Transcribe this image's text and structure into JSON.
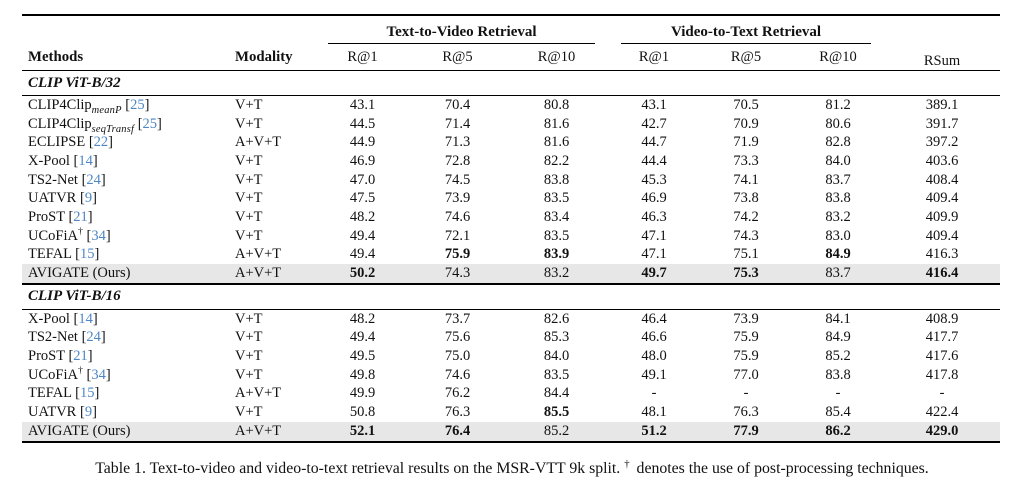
{
  "header": {
    "methods": "Methods",
    "modality": "Modality",
    "t2v_group": "Text-to-Video Retrieval",
    "v2t_group": "Video-to-Text Retrieval",
    "rsum": "RSum",
    "metric_labels": [
      "R@1",
      "R@5",
      "R@10",
      "R@1",
      "R@5",
      "R@10"
    ]
  },
  "colors": {
    "cite_blue": "#4f87c5",
    "highlight_gray": "#e7e7e7"
  },
  "chart_data": {
    "type": "table",
    "title": "Table 1",
    "column_groups": [
      "Text-to-Video Retrieval",
      "Video-to-Text Retrieval"
    ],
    "columns": [
      "Methods",
      "Modality",
      "T2V R@1",
      "T2V R@5",
      "T2V R@10",
      "V2T R@1",
      "V2T R@5",
      "V2T R@10",
      "RSum"
    ]
  },
  "sections": [
    {
      "title": "CLIP ViT-B/32",
      "rows": [
        {
          "method": "CLIP4Clip",
          "sub": "meanP",
          "ref": "25",
          "modality": "V+T",
          "values": [
            "43.1",
            "70.4",
            "80.8",
            "43.1",
            "70.5",
            "81.2",
            "389.1"
          ],
          "bold": []
        },
        {
          "method": "CLIP4Clip",
          "sub": "seqTransf",
          "ref": "25",
          "modality": "V+T",
          "values": [
            "44.5",
            "71.4",
            "81.6",
            "42.7",
            "70.9",
            "80.6",
            "391.7"
          ],
          "bold": []
        },
        {
          "method": "ECLIPSE",
          "ref": "22",
          "modality": "A+V+T",
          "values": [
            "44.9",
            "71.3",
            "81.6",
            "44.7",
            "71.9",
            "82.8",
            "397.2"
          ],
          "bold": []
        },
        {
          "method": "X-Pool",
          "ref": "14",
          "modality": "V+T",
          "values": [
            "46.9",
            "72.8",
            "82.2",
            "44.4",
            "73.3",
            "84.0",
            "403.6"
          ],
          "bold": []
        },
        {
          "method": "TS2-Net",
          "ref": "24",
          "modality": "V+T",
          "values": [
            "47.0",
            "74.5",
            "83.8",
            "45.3",
            "74.1",
            "83.7",
            "408.4"
          ],
          "bold": []
        },
        {
          "method": "UATVR",
          "ref": "9",
          "modality": "V+T",
          "values": [
            "47.5",
            "73.9",
            "83.5",
            "46.9",
            "73.8",
            "83.8",
            "409.4"
          ],
          "bold": []
        },
        {
          "method": "ProST",
          "ref": "21",
          "modality": "V+T",
          "values": [
            "48.2",
            "74.6",
            "83.4",
            "46.3",
            "74.2",
            "83.2",
            "409.9"
          ],
          "bold": []
        },
        {
          "method": "UCoFiA",
          "dagger": true,
          "ref": "34",
          "modality": "V+T",
          "values": [
            "49.4",
            "72.1",
            "83.5",
            "47.1",
            "74.3",
            "83.0",
            "409.4"
          ],
          "bold": []
        },
        {
          "method": "TEFAL",
          "ref": "15",
          "modality": "A+V+T",
          "values": [
            "49.4",
            "75.9",
            "83.9",
            "47.1",
            "75.1",
            "84.9",
            "416.3"
          ],
          "bold": [
            1,
            2,
            5
          ]
        },
        {
          "method": "AVIGATE",
          "suffix": "(Ours)",
          "modality": "A+V+T",
          "values": [
            "50.2",
            "74.3",
            "83.2",
            "49.7",
            "75.3",
            "83.7",
            "416.4"
          ],
          "bold": [
            0,
            3,
            4,
            6
          ],
          "highlight": true
        }
      ]
    },
    {
      "title": "CLIP ViT-B/16",
      "rows": [
        {
          "method": "X-Pool",
          "ref": "14",
          "modality": "V+T",
          "values": [
            "48.2",
            "73.7",
            "82.6",
            "46.4",
            "73.9",
            "84.1",
            "408.9"
          ],
          "bold": []
        },
        {
          "method": "TS2-Net",
          "ref": "24",
          "modality": "V+T",
          "values": [
            "49.4",
            "75.6",
            "85.3",
            "46.6",
            "75.9",
            "84.9",
            "417.7"
          ],
          "bold": []
        },
        {
          "method": "ProST",
          "ref": "21",
          "modality": "V+T",
          "values": [
            "49.5",
            "75.0",
            "84.0",
            "48.0",
            "75.9",
            "85.2",
            "417.6"
          ],
          "bold": []
        },
        {
          "method": "UCoFiA",
          "dagger": true,
          "ref": "34",
          "modality": "V+T",
          "values": [
            "49.8",
            "74.6",
            "83.5",
            "49.1",
            "77.0",
            "83.8",
            "417.8"
          ],
          "bold": []
        },
        {
          "method": "TEFAL",
          "ref": "15",
          "modality": "A+V+T",
          "values": [
            "49.9",
            "76.2",
            "84.4",
            "-",
            "-",
            "-",
            "-"
          ],
          "bold": []
        },
        {
          "method": "UATVR",
          "ref": "9",
          "modality": "V+T",
          "values": [
            "50.8",
            "76.3",
            "85.5",
            "48.1",
            "76.3",
            "85.4",
            "422.4"
          ],
          "bold": [
            2
          ]
        },
        {
          "method": "AVIGATE",
          "suffix": "(Ours)",
          "modality": "A+V+T",
          "values": [
            "52.1",
            "76.4",
            "85.2",
            "51.2",
            "77.9",
            "86.2",
            "429.0"
          ],
          "bold": [
            0,
            1,
            3,
            4,
            5,
            6
          ],
          "highlight": true
        }
      ]
    }
  ],
  "caption": {
    "prefix": "Table 1. Text-to-video and video-to-text retrieval results on the MSR-VTT 9k split.",
    "dagger": "†",
    "suffix": "denotes the use of post-processing techniques."
  }
}
